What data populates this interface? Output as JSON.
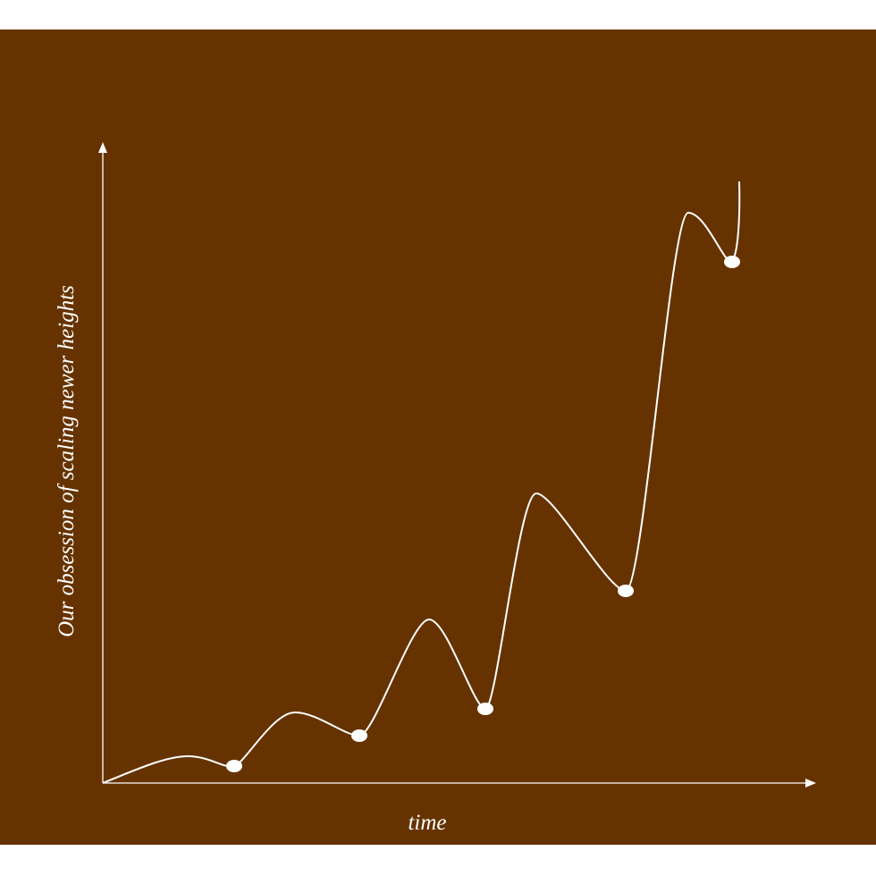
{
  "x_axis_label": "time",
  "y_axis_label": "Our obsession of scaling newer heights"
}
